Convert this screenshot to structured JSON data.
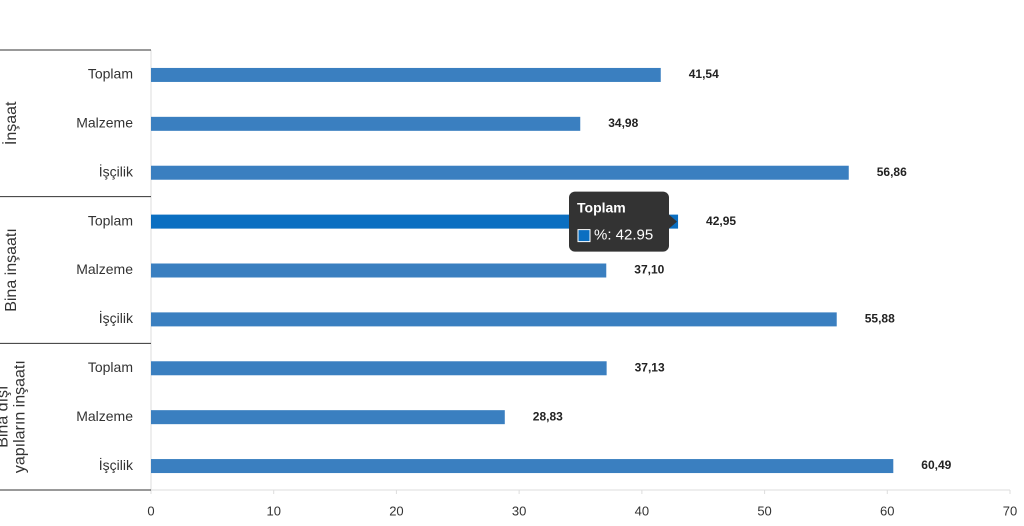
{
  "chart_data": {
    "type": "bar",
    "orientation": "horizontal",
    "groups": [
      [
        "İnşaat"
      ],
      [
        "Bina inşaatı"
      ],
      [
        "Bina dışı",
        "yapıların inşaatı"
      ]
    ],
    "categories": [
      "Toplam",
      "Malzeme",
      "İşçilik",
      "Toplam",
      "Malzeme",
      "İşçilik",
      "Toplam",
      "Malzeme",
      "İşçilik"
    ],
    "values": [
      41.54,
      34.98,
      56.86,
      42.95,
      37.1,
      55.88,
      37.13,
      28.83,
      60.49
    ],
    "value_labels": [
      "41,54",
      "34,98",
      "56,86",
      "42,95",
      "37,10",
      "55,88",
      "37,13",
      "28,83",
      "60,49"
    ],
    "colors": [
      "#3a7fc0",
      "#3a7fc0",
      "#3a7fc0",
      "#0b6fc1",
      "#3a7fc0",
      "#3a7fc0",
      "#3a7fc0",
      "#3a7fc0",
      "#3a7fc0"
    ],
    "xlim": [
      0,
      70
    ],
    "xticks": [
      0,
      10,
      20,
      30,
      40,
      50,
      60,
      70
    ],
    "tooltip": {
      "title": "Toplam",
      "text": "%: 42.95"
    }
  }
}
